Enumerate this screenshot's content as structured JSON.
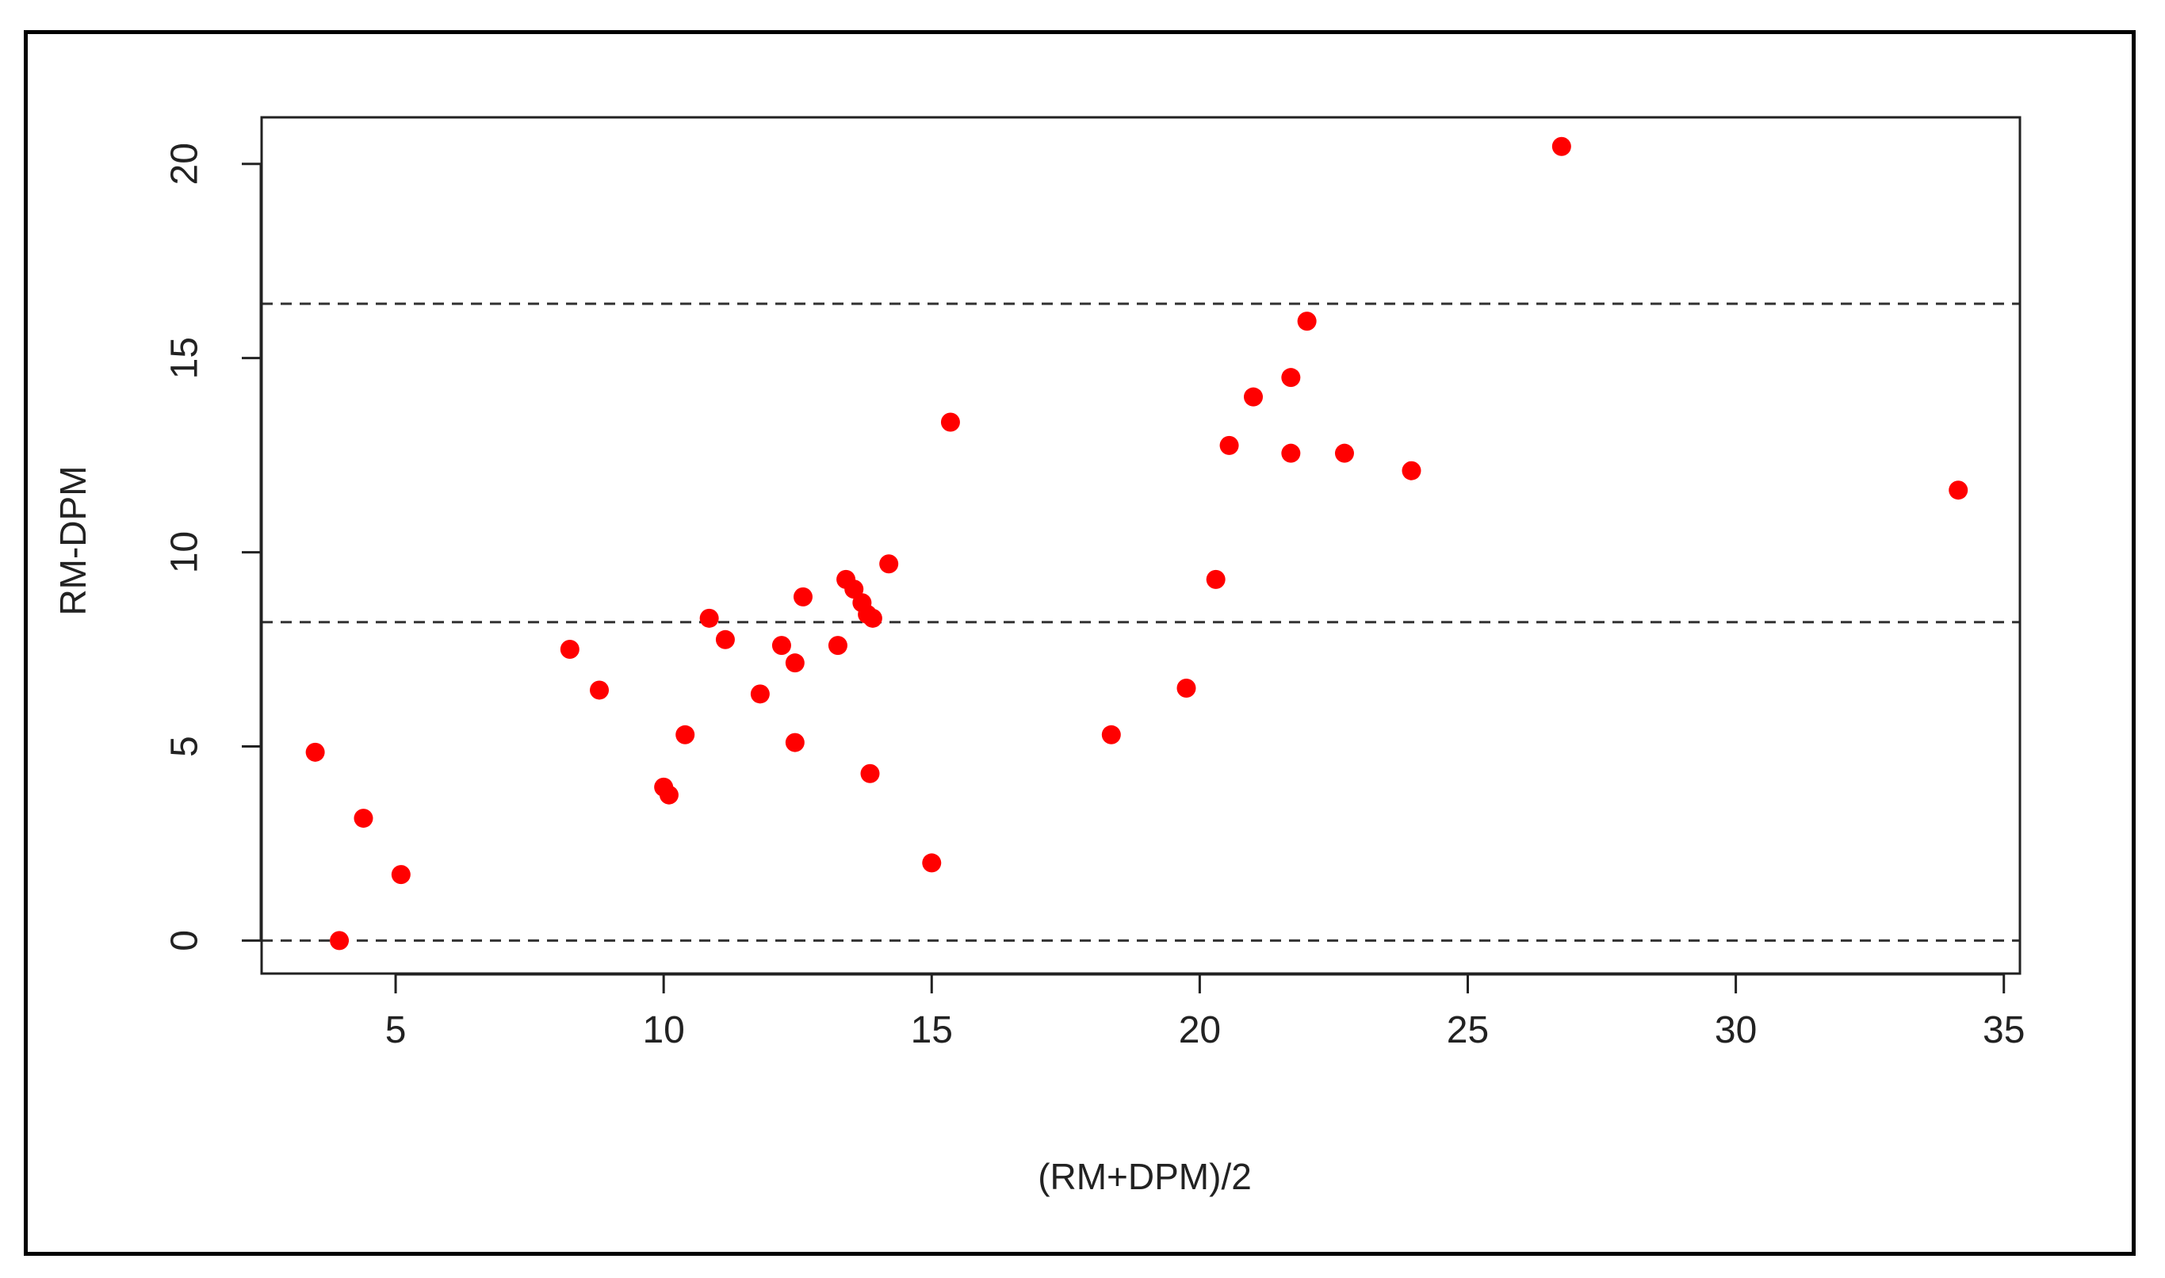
{
  "chart_data": {
    "type": "scatter",
    "title": "",
    "xlabel": "(RM+DPM)/2",
    "ylabel": "RM-DPM",
    "xlim": [
      2.5,
      35.3
    ],
    "ylim": [
      -0.85,
      21.2
    ],
    "xticks": [
      5,
      10,
      15,
      20,
      25,
      30,
      35
    ],
    "yticks": [
      0,
      5,
      10,
      15,
      20
    ],
    "marker_color": "#ff0000",
    "reference_lines": [
      0,
      8.2,
      16.4
    ],
    "reference_line_style": "dashed",
    "grid": false,
    "points": [
      {
        "x": 3.5,
        "y": 4.85
      },
      {
        "x": 3.95,
        "y": 0.0
      },
      {
        "x": 4.4,
        "y": 3.15
      },
      {
        "x": 5.1,
        "y": 1.7
      },
      {
        "x": 8.25,
        "y": 7.5
      },
      {
        "x": 8.8,
        "y": 6.45
      },
      {
        "x": 10.0,
        "y": 3.95
      },
      {
        "x": 10.1,
        "y": 3.75
      },
      {
        "x": 10.4,
        "y": 5.3
      },
      {
        "x": 10.85,
        "y": 8.3
      },
      {
        "x": 11.15,
        "y": 7.75
      },
      {
        "x": 11.8,
        "y": 6.35
      },
      {
        "x": 12.2,
        "y": 7.6
      },
      {
        "x": 12.45,
        "y": 7.15
      },
      {
        "x": 12.45,
        "y": 5.1
      },
      {
        "x": 12.6,
        "y": 8.85
      },
      {
        "x": 13.25,
        "y": 7.6
      },
      {
        "x": 13.4,
        "y": 9.3
      },
      {
        "x": 13.55,
        "y": 9.05
      },
      {
        "x": 13.7,
        "y": 8.7
      },
      {
        "x": 13.8,
        "y": 8.4
      },
      {
        "x": 13.85,
        "y": 4.3
      },
      {
        "x": 13.9,
        "y": 8.3
      },
      {
        "x": 14.2,
        "y": 9.7
      },
      {
        "x": 15.0,
        "y": 2.0
      },
      {
        "x": 15.35,
        "y": 13.35
      },
      {
        "x": 18.35,
        "y": 5.3
      },
      {
        "x": 19.75,
        "y": 6.5
      },
      {
        "x": 20.3,
        "y": 9.3
      },
      {
        "x": 20.55,
        "y": 12.75
      },
      {
        "x": 21.0,
        "y": 14.0
      },
      {
        "x": 21.7,
        "y": 14.5
      },
      {
        "x": 21.7,
        "y": 12.55
      },
      {
        "x": 22.0,
        "y": 15.95
      },
      {
        "x": 22.7,
        "y": 12.55
      },
      {
        "x": 23.95,
        "y": 12.1
      },
      {
        "x": 26.75,
        "y": 20.45
      },
      {
        "x": 34.15,
        "y": 11.6
      }
    ]
  }
}
